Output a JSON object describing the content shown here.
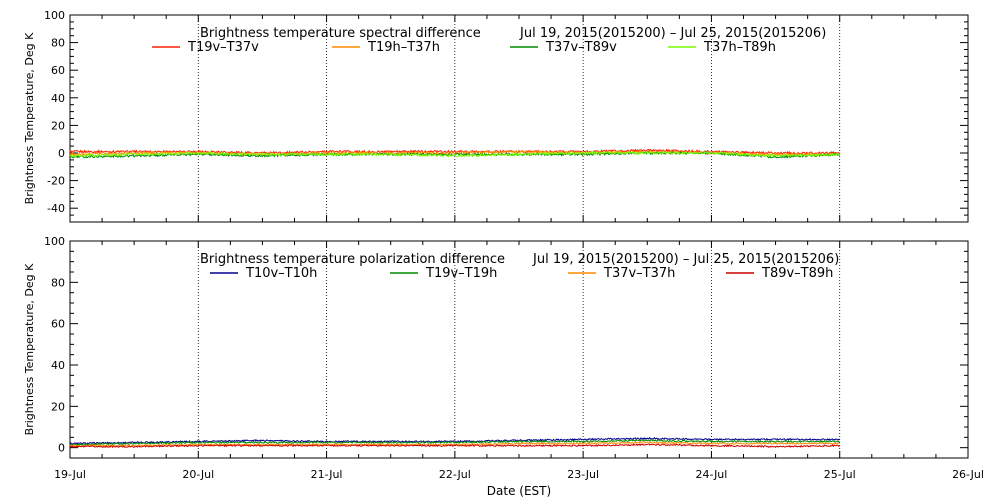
{
  "xlabel": "Date (EST)",
  "x_ticks": [
    "19-Jul",
    "20-Jul",
    "21-Jul",
    "22-Jul",
    "23-Jul",
    "24-Jul",
    "25-Jul",
    "26-Jul"
  ],
  "chart_data": [
    {
      "type": "line",
      "title": "Brightness temperature spectral difference",
      "date_range": "Jul 19, 2015(2015200) – Jul 25, 2015(2015206)",
      "ylabel": "Brightness Temperature, Deg K",
      "xlim": [
        "2015-07-19",
        "2015-07-26"
      ],
      "ylim": [
        -50,
        100
      ],
      "y_ticks": [
        100,
        80,
        60,
        40,
        20,
        0,
        -20,
        -40
      ],
      "x": [
        "2015-07-19",
        "2015-07-19 12:00",
        "2015-07-20",
        "2015-07-20 12:00",
        "2015-07-21",
        "2015-07-21 12:00",
        "2015-07-22",
        "2015-07-22 12:00",
        "2015-07-23",
        "2015-07-23 12:00",
        "2015-07-24",
        "2015-07-24 12:00",
        "2015-07-25"
      ],
      "series": [
        {
          "name": "T19v–T37v",
          "color": "#ff2200",
          "values": [
            1,
            1,
            1,
            0,
            1,
            1,
            1,
            1,
            1,
            2,
            1,
            0,
            0
          ]
        },
        {
          "name": "T19h–T37h",
          "color": "#ff8c00",
          "values": [
            -1,
            0,
            0,
            -1,
            0,
            0,
            0,
            1,
            0,
            1,
            0,
            -1,
            -1
          ]
        },
        {
          "name": "T37v–T89v",
          "color": "#008c00",
          "values": [
            -3,
            -2,
            -1,
            -2,
            -1,
            -1,
            -1,
            -1,
            -1,
            0,
            0,
            -3,
            -1
          ]
        },
        {
          "name": "T37h–T89h",
          "color": "#7cfc00",
          "values": [
            -2,
            -1,
            0,
            -1,
            -1,
            -1,
            -2,
            -1,
            0,
            0,
            0,
            -2,
            -1
          ]
        }
      ]
    },
    {
      "type": "line",
      "title": "Brightness temperature polarization difference",
      "date_range": "Jul 19, 2015(2015200) – Jul 25, 2015(2015206)",
      "ylabel": "Brightness Temperature, Deg K",
      "xlim": [
        "2015-07-19",
        "2015-07-26"
      ],
      "ylim": [
        -5,
        100
      ],
      "y_ticks": [
        100,
        80,
        60,
        40,
        20,
        0
      ],
      "x": [
        "2015-07-19",
        "2015-07-19 12:00",
        "2015-07-20",
        "2015-07-20 12:00",
        "2015-07-21",
        "2015-07-21 12:00",
        "2015-07-22",
        "2015-07-22 12:00",
        "2015-07-23",
        "2015-07-23 12:00",
        "2015-07-24",
        "2015-07-24 12:00",
        "2015-07-25"
      ],
      "series": [
        {
          "name": "T10v–T10h",
          "color": "#00008b",
          "values": [
            2,
            2.5,
            3,
            3.5,
            3,
            3,
            3,
            3.5,
            4,
            4.5,
            4,
            4,
            4
          ]
        },
        {
          "name": "T19v–T19h",
          "color": "#008c00",
          "values": [
            1.5,
            2,
            2.5,
            2.5,
            2.5,
            2.5,
            2.5,
            3,
            3,
            3.5,
            3,
            3,
            3
          ]
        },
        {
          "name": "T37v–T37h",
          "color": "#ff8c00",
          "values": [
            1,
            1,
            1.5,
            1.5,
            1.5,
            1.5,
            1.5,
            2,
            2,
            2.5,
            2,
            2,
            2
          ]
        },
        {
          "name": "T89v–T89h",
          "color": "#cc0000",
          "values": [
            0.5,
            0.5,
            1,
            1,
            1,
            1,
            1,
            1,
            1,
            1.5,
            1,
            0.5,
            1
          ]
        }
      ]
    }
  ]
}
